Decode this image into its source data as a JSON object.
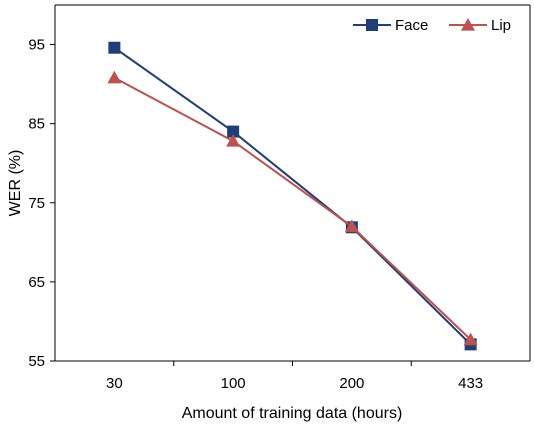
{
  "chart_data": {
    "type": "line",
    "categories": [
      "30",
      "100",
      "200",
      "433"
    ],
    "series": [
      {
        "name": "Face",
        "values": [
          94.6,
          84.0,
          71.9,
          57.1
        ],
        "color": "#1f3f7a",
        "marker": "square"
      },
      {
        "name": "Lip",
        "values": [
          90.8,
          82.8,
          72.0,
          57.7
        ],
        "color": "#c0504d",
        "marker": "triangle"
      }
    ],
    "xlabel": "Amount of training data (hours)",
    "ylabel": "WER (%)",
    "ylim": [
      55,
      100
    ],
    "yticks": [
      "95",
      "85",
      "75",
      "65",
      "55"
    ],
    "grid": false,
    "legend_position": "top-right"
  }
}
